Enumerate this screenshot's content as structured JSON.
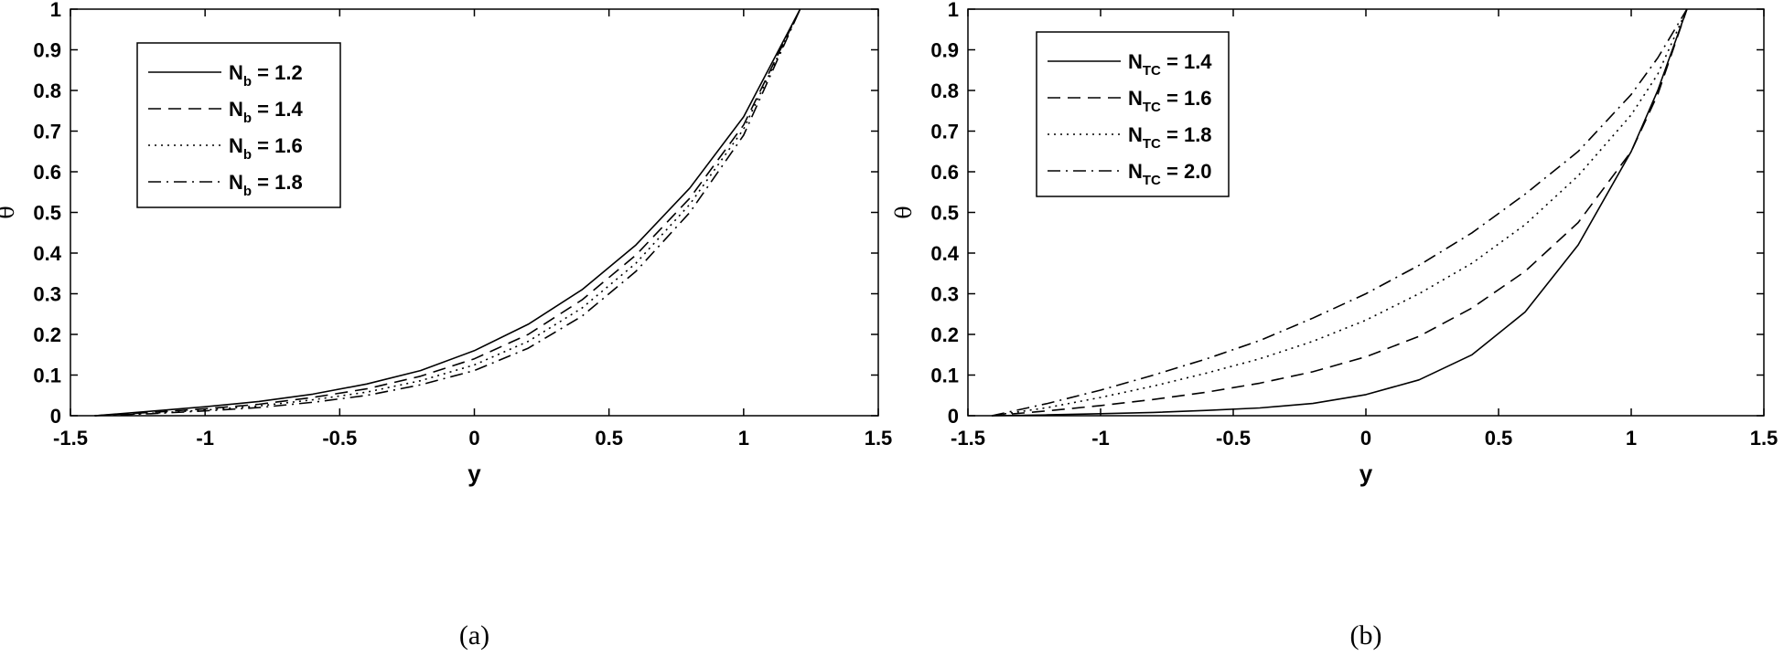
{
  "chart_data": [
    {
      "type": "line",
      "panel_label": "(a)",
      "xlabel": "y",
      "ylabel": "θ",
      "xlim": [
        -1.5,
        1.5
      ],
      "ylim": [
        0,
        1
      ],
      "xticks": [
        "-1.5",
        "-1",
        "-0.5",
        "0",
        "0.5",
        "1",
        "1.5"
      ],
      "yticks": [
        "0",
        "0.1",
        "0.2",
        "0.3",
        "0.4",
        "0.5",
        "0.6",
        "0.7",
        "0.8",
        "0.9",
        "1"
      ],
      "legend_position": "top-left",
      "series": [
        {
          "legend_main": "N",
          "legend_sub": "b",
          "legend_value": " = 1.2",
          "dash": "solid",
          "x": [
            -1.41,
            -1.2,
            -1.0,
            -0.8,
            -0.6,
            -0.4,
            -0.2,
            0.0,
            0.2,
            0.4,
            0.6,
            0.8,
            1.0,
            1.21
          ],
          "y": [
            0.0,
            0.011,
            0.022,
            0.035,
            0.053,
            0.078,
            0.111,
            0.16,
            0.225,
            0.31,
            0.42,
            0.56,
            0.735,
            1.0
          ]
        },
        {
          "legend_main": "N",
          "legend_sub": "b",
          "legend_value": " = 1.4",
          "dash": "dashed",
          "x": [
            -1.41,
            -1.2,
            -1.0,
            -0.8,
            -0.6,
            -0.4,
            -0.2,
            0.0,
            0.2,
            0.4,
            0.6,
            0.8,
            1.0,
            1.21
          ],
          "y": [
            0.0,
            0.008,
            0.017,
            0.028,
            0.045,
            0.066,
            0.097,
            0.14,
            0.2,
            0.285,
            0.395,
            0.535,
            0.715,
            1.0
          ]
        },
        {
          "legend_main": "N",
          "legend_sub": "b",
          "legend_value": " = 1.6",
          "dash": "dotted",
          "x": [
            -1.41,
            -1.2,
            -1.0,
            -0.8,
            -0.6,
            -0.4,
            -0.2,
            0.0,
            0.2,
            0.4,
            0.6,
            0.8,
            1.0,
            1.21
          ],
          "y": [
            0.0,
            0.006,
            0.014,
            0.024,
            0.039,
            0.058,
            0.086,
            0.125,
            0.183,
            0.265,
            0.375,
            0.52,
            0.705,
            1.0
          ]
        },
        {
          "legend_main": "N",
          "legend_sub": "b",
          "legend_value": " = 1.8",
          "dash": "dashdot",
          "x": [
            -1.41,
            -1.2,
            -1.0,
            -0.8,
            -0.6,
            -0.4,
            -0.2,
            0.0,
            0.2,
            0.4,
            0.6,
            0.8,
            1.0,
            1.21
          ],
          "y": [
            0.0,
            0.005,
            0.012,
            0.02,
            0.033,
            0.05,
            0.076,
            0.111,
            0.166,
            0.245,
            0.355,
            0.5,
            0.69,
            1.0
          ]
        }
      ]
    },
    {
      "type": "line",
      "panel_label": "(b)",
      "xlabel": "y",
      "ylabel": "θ",
      "xlim": [
        -1.5,
        1.5
      ],
      "ylim": [
        0,
        1
      ],
      "xticks": [
        "-1.5",
        "-1",
        "-0.5",
        "0",
        "0.5",
        "1",
        "1.5"
      ],
      "yticks": [
        "0",
        "0.1",
        "0.2",
        "0.3",
        "0.4",
        "0.5",
        "0.6",
        "0.7",
        "0.8",
        "0.9",
        "1"
      ],
      "legend_position": "top-left",
      "series": [
        {
          "legend_main": "N",
          "legend_sub": "TC",
          "legend_value": " = 1.4",
          "dash": "solid",
          "x": [
            -1.41,
            -1.2,
            -1.0,
            -0.8,
            -0.6,
            -0.4,
            -0.2,
            0.0,
            0.2,
            0.4,
            0.6,
            0.8,
            1.0,
            1.1,
            1.21
          ],
          "y": [
            0.0,
            0.002,
            0.005,
            0.008,
            0.013,
            0.019,
            0.03,
            0.052,
            0.088,
            0.15,
            0.255,
            0.42,
            0.65,
            0.8,
            1.0
          ]
        },
        {
          "legend_main": "N",
          "legend_sub": "TC",
          "legend_value": " = 1.6",
          "dash": "dashed",
          "x": [
            -1.41,
            -1.2,
            -1.0,
            -0.8,
            -0.6,
            -0.4,
            -0.2,
            0.0,
            0.2,
            0.4,
            0.6,
            0.8,
            1.0,
            1.1,
            1.21
          ],
          "y": [
            0.0,
            0.012,
            0.025,
            0.04,
            0.058,
            0.08,
            0.108,
            0.145,
            0.195,
            0.265,
            0.355,
            0.475,
            0.65,
            0.79,
            1.0
          ]
        },
        {
          "legend_main": "N",
          "legend_sub": "TC",
          "legend_value": " = 1.8",
          "dash": "dotted",
          "x": [
            -1.41,
            -1.2,
            -1.0,
            -0.8,
            -0.6,
            -0.4,
            -0.2,
            0.0,
            0.2,
            0.4,
            0.6,
            0.8,
            1.0,
            1.1,
            1.21
          ],
          "y": [
            0.0,
            0.02,
            0.045,
            0.073,
            0.105,
            0.14,
            0.183,
            0.235,
            0.3,
            0.375,
            0.47,
            0.59,
            0.74,
            0.84,
            1.0
          ]
        },
        {
          "legend_main": "N",
          "legend_sub": "TC",
          "legend_value": " = 2.0",
          "dash": "dashdot",
          "x": [
            -1.41,
            -1.2,
            -1.0,
            -0.8,
            -0.6,
            -0.4,
            -0.2,
            0.0,
            0.2,
            0.4,
            0.6,
            0.8,
            1.0,
            1.1,
            1.21
          ],
          "y": [
            0.0,
            0.03,
            0.063,
            0.1,
            0.14,
            0.185,
            0.24,
            0.3,
            0.37,
            0.45,
            0.545,
            0.65,
            0.79,
            0.88,
            1.0
          ]
        }
      ]
    }
  ]
}
